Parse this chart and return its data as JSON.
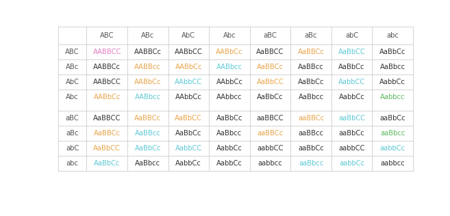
{
  "col_headers": [
    "",
    "ABC",
    "ABc",
    "AbC",
    "Abc",
    "aBC",
    "aBc",
    "abC",
    "abc"
  ],
  "row_headers": [
    "ABC",
    "ABc",
    "AbC",
    "Abc",
    "",
    "aBC",
    "aBc",
    "abC",
    "abc"
  ],
  "cells": [
    [
      "AABBCC",
      "AABBCc",
      "AABbCC",
      "AABbCc",
      "AaBBCC",
      "AaBBCc",
      "AaBbCC",
      "AaBbCc"
    ],
    [
      "AABBCc",
      "AABBcc",
      "AABbCc",
      "AABbcc",
      "AaBBCc",
      "AaBBcc",
      "AaBbCc",
      "AaBbcc"
    ],
    [
      "AABbCC",
      "AABbCc",
      "AAbbCC",
      "AAbbCc",
      "AaBbCC",
      "AaBbCc",
      "AabbCC",
      "AabbCc"
    ],
    [
      "AABbCc",
      "AABbcc",
      "AAbbCc",
      "AAbbcc",
      "AaBbCc",
      "AaBbcc",
      "AabbCc",
      "Aabbcc"
    ],
    [
      "",
      "",
      "",
      "",
      "",
      "",
      "",
      ""
    ],
    [
      "AaBBCC",
      "AaBBCc",
      "AaBbCC",
      "AaBbCc",
      "aaBBCC",
      "aaBBCc",
      "aaBbCC",
      "aaBbCc"
    ],
    [
      "AaBBCc",
      "AaBBcc",
      "AaBbCc",
      "AaBbcc",
      "aaBBCc",
      "aaBBcc",
      "aaBbCc",
      "aaBbcc"
    ],
    [
      "AaBbCC",
      "AaBbCc",
      "AabbCC",
      "AabbCc",
      "aabbCC",
      "aaBbCc",
      "aabbCC",
      "aabbCc"
    ],
    [
      "AaBbCc",
      "AaBbcc",
      "AabbCc",
      "AabbCc",
      "aabbcc",
      "aaBbcc",
      "aabbCc",
      "aabbcc"
    ]
  ],
  "cell_colors": [
    [
      "pink",
      "black",
      "black",
      "orange",
      "black",
      "orange",
      "cyan",
      "black"
    ],
    [
      "black",
      "orange",
      "orange",
      "cyan",
      "orange",
      "black",
      "black",
      "black"
    ],
    [
      "black",
      "orange",
      "cyan",
      "black",
      "orange",
      "black",
      "cyan",
      "black"
    ],
    [
      "orange",
      "cyan",
      "black",
      "black",
      "black",
      "black",
      "black",
      "green"
    ],
    [
      "black",
      "black",
      "black",
      "black",
      "black",
      "black",
      "black",
      "black"
    ],
    [
      "black",
      "orange",
      "orange",
      "black",
      "black",
      "orange",
      "cyan",
      "black"
    ],
    [
      "orange",
      "cyan",
      "black",
      "black",
      "orange",
      "black",
      "black",
      "green"
    ],
    [
      "orange",
      "cyan",
      "cyan",
      "black",
      "black",
      "black",
      "black",
      "cyan"
    ],
    [
      "cyan",
      "black",
      "black",
      "black",
      "black",
      "cyan",
      "cyan",
      "black"
    ]
  ],
  "color_map": {
    "pink": "#e07cc0",
    "orange": "#e8a44a",
    "cyan": "#5dc8d4",
    "green": "#5cb85c",
    "black": "#333333"
  },
  "bg_color": "#ffffff",
  "header_color": "#555555",
  "grid_color": "#cccccc",
  "font_size": 7.2
}
